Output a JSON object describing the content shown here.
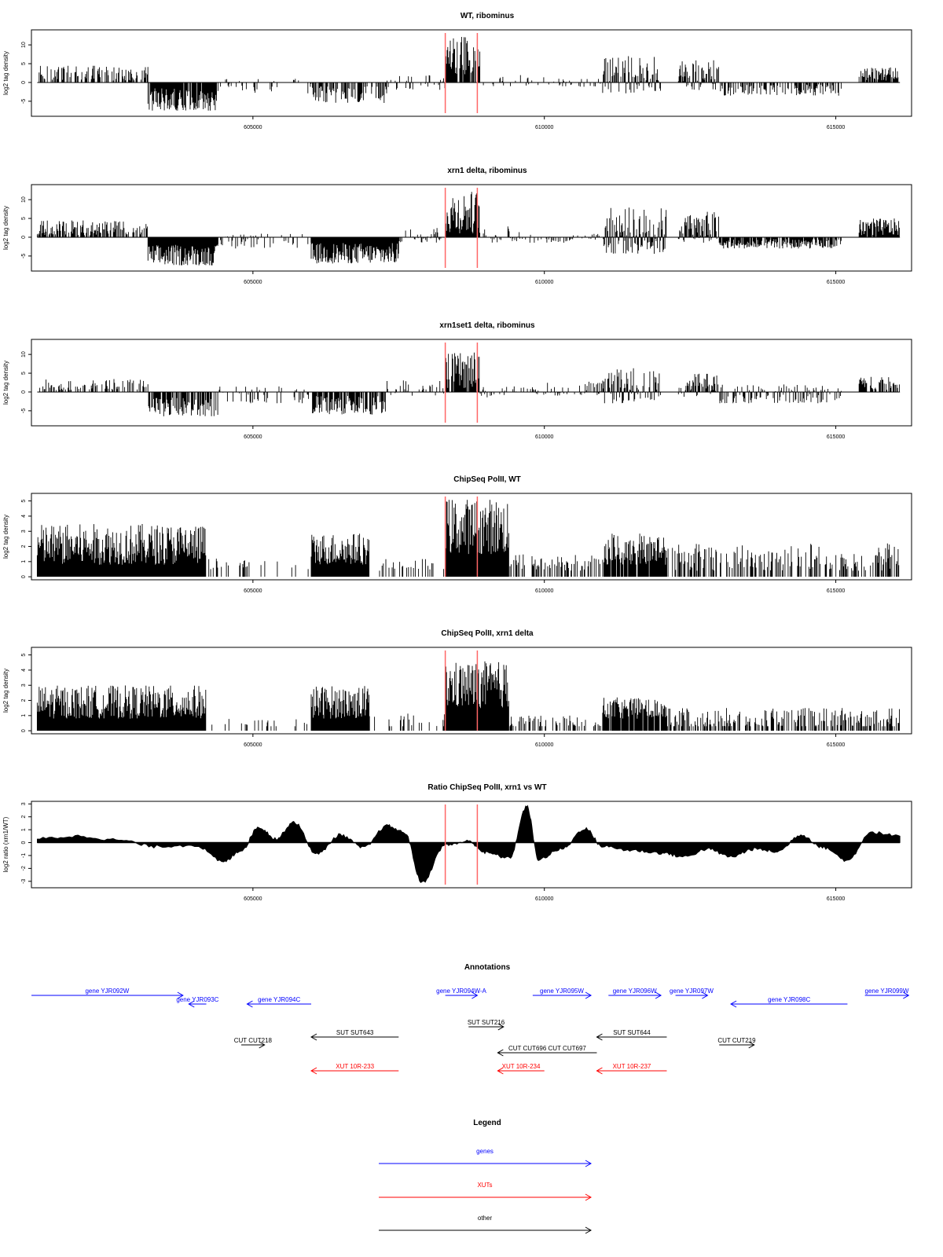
{
  "colors": {
    "gene": "#0000ff",
    "xut": "#ff0000",
    "other": "#000000",
    "marker": "#ff6666",
    "bars": "#000000",
    "frame": "#000000"
  },
  "chart_data": [
    {
      "type": "bar",
      "title": "WT, ribominus",
      "ylabel": "log2 tag density",
      "xlim": [
        601200,
        616300
      ],
      "ylim": [
        -9,
        14
      ],
      "xticks": [
        605000,
        610000,
        615000
      ],
      "xtick_labels": [
        "605000",
        "610000",
        "615000"
      ],
      "yticks": [
        -5,
        0,
        5,
        10
      ],
      "ytick_labels": [
        "-5",
        "0",
        "5",
        "10"
      ],
      "markers": [
        608300,
        608850
      ],
      "segments": [
        {
          "from": 601300,
          "to": 603200,
          "min": 0.5,
          "max": 4.5,
          "density": 0.45
        },
        {
          "from": 603200,
          "to": 604400,
          "min": -7.5,
          "max": -1.5,
          "density": 0.9
        },
        {
          "from": 604400,
          "to": 606000,
          "min": -3,
          "max": 1,
          "density": 0.25
        },
        {
          "from": 606000,
          "to": 607300,
          "min": -5.5,
          "max": -1,
          "density": 0.55
        },
        {
          "from": 607300,
          "to": 608300,
          "min": -2,
          "max": 2,
          "density": 0.2
        },
        {
          "from": 608300,
          "to": 608900,
          "min": 2,
          "max": 12.5,
          "density": 0.9
        },
        {
          "from": 608900,
          "to": 610000,
          "min": -1,
          "max": 2,
          "density": 0.2
        },
        {
          "from": 610000,
          "to": 611000,
          "min": -1.5,
          "max": 1,
          "density": 0.25
        },
        {
          "from": 611000,
          "to": 612000,
          "min": -3,
          "max": 7,
          "density": 0.8
        },
        {
          "from": 612300,
          "to": 613000,
          "min": -2,
          "max": 6,
          "density": 0.8
        },
        {
          "from": 613000,
          "to": 615100,
          "min": -3.5,
          "max": -0.5,
          "density": 0.5
        },
        {
          "from": 615400,
          "to": 616100,
          "min": 0.5,
          "max": 4,
          "density": 0.7
        }
      ]
    },
    {
      "type": "bar",
      "title": "xrn1 delta, ribominus",
      "ylabel": "log2 tag density",
      "xlim": [
        601200,
        616300
      ],
      "ylim": [
        -9,
        14
      ],
      "xticks": [
        605000,
        610000,
        615000
      ],
      "xtick_labels": [
        "605000",
        "610000",
        "615000"
      ],
      "yticks": [
        -5,
        0,
        5,
        10
      ],
      "ytick_labels": [
        "-5",
        "0",
        "5",
        "10"
      ],
      "markers": [
        608300,
        608850
      ],
      "segments": [
        {
          "from": 601300,
          "to": 603200,
          "min": 0.5,
          "max": 4.5,
          "density": 0.6
        },
        {
          "from": 603200,
          "to": 604400,
          "min": -7.5,
          "max": -2,
          "density": 1.0
        },
        {
          "from": 604400,
          "to": 606000,
          "min": -3,
          "max": 1,
          "density": 0.3
        },
        {
          "from": 606000,
          "to": 607500,
          "min": -7,
          "max": -1.5,
          "density": 1.0
        },
        {
          "from": 607500,
          "to": 608300,
          "min": -1.5,
          "max": 2.5,
          "density": 0.3
        },
        {
          "from": 608300,
          "to": 608900,
          "min": 1,
          "max": 12.5,
          "density": 1.0
        },
        {
          "from": 608900,
          "to": 610000,
          "min": -1.5,
          "max": 3,
          "density": 0.25
        },
        {
          "from": 610000,
          "to": 611000,
          "min": -1.5,
          "max": 1,
          "density": 0.35
        },
        {
          "from": 611000,
          "to": 612100,
          "min": -4.5,
          "max": 8,
          "density": 1.0
        },
        {
          "from": 612300,
          "to": 613000,
          "min": -1.5,
          "max": 7,
          "density": 0.9
        },
        {
          "from": 613000,
          "to": 615100,
          "min": -3,
          "max": -0.5,
          "density": 0.8
        },
        {
          "from": 615400,
          "to": 616100,
          "min": 0.5,
          "max": 5,
          "density": 0.9
        }
      ]
    },
    {
      "type": "bar",
      "title": "xrn1set1 delta, ribominus",
      "ylabel": "log2 tag density",
      "xlim": [
        601200,
        616300
      ],
      "ylim": [
        -9,
        14
      ],
      "xticks": [
        605000,
        610000,
        615000
      ],
      "xtick_labels": [
        "605000",
        "610000",
        "615000"
      ],
      "yticks": [
        -5,
        0,
        5,
        10
      ],
      "ytick_labels": [
        "-5",
        "0",
        "5",
        "10"
      ],
      "markers": [
        608300,
        608850
      ],
      "segments": [
        {
          "from": 601300,
          "to": 603200,
          "min": 0.5,
          "max": 3.5,
          "density": 0.45
        },
        {
          "from": 603200,
          "to": 604400,
          "min": -6.5,
          "max": -1.5,
          "density": 0.7
        },
        {
          "from": 604400,
          "to": 606000,
          "min": -3,
          "max": 1.5,
          "density": 0.3
        },
        {
          "from": 606000,
          "to": 607300,
          "min": -6,
          "max": -1,
          "density": 0.7
        },
        {
          "from": 607300,
          "to": 608300,
          "min": -1,
          "max": 3.5,
          "density": 0.3
        },
        {
          "from": 608300,
          "to": 608900,
          "min": 1,
          "max": 10.5,
          "density": 0.8
        },
        {
          "from": 608900,
          "to": 610000,
          "min": -1.5,
          "max": 2,
          "density": 0.25
        },
        {
          "from": 610000,
          "to": 611000,
          "min": -1,
          "max": 3,
          "density": 0.45
        },
        {
          "from": 611000,
          "to": 612000,
          "min": -3,
          "max": 6.5,
          "density": 0.75
        },
        {
          "from": 612300,
          "to": 613000,
          "min": -1.5,
          "max": 5.5,
          "density": 0.7
        },
        {
          "from": 613000,
          "to": 615100,
          "min": -3,
          "max": 2,
          "density": 0.55
        },
        {
          "from": 615400,
          "to": 616100,
          "min": 0.5,
          "max": 4,
          "density": 0.6
        }
      ]
    },
    {
      "type": "bar",
      "title": "ChipSeq PolII, WT",
      "ylabel": "log2 tag density",
      "xlim": [
        601200,
        616300
      ],
      "ylim": [
        -0.2,
        5.5
      ],
      "xticks": [
        605000,
        610000,
        615000
      ],
      "xtick_labels": [
        "605000",
        "610000",
        "615000"
      ],
      "yticks": [
        0,
        1,
        2,
        3,
        4,
        5
      ],
      "ytick_labels": [
        "0",
        "1",
        "2",
        "3",
        "4",
        "5"
      ],
      "markers": [
        608300,
        608850
      ],
      "segments": [
        {
          "from": 601300,
          "to": 604200,
          "min": 0.8,
          "max": 3.5,
          "density": 1.0
        },
        {
          "from": 604200,
          "to": 606000,
          "min": 0.4,
          "max": 1.2,
          "density": 0.15
        },
        {
          "from": 606000,
          "to": 607000,
          "min": 0.8,
          "max": 2.9,
          "density": 1.0
        },
        {
          "from": 607000,
          "to": 608300,
          "min": 0.4,
          "max": 1.2,
          "density": 0.2
        },
        {
          "from": 608300,
          "to": 609400,
          "min": 1.5,
          "max": 5.2,
          "density": 1.0
        },
        {
          "from": 609400,
          "to": 611000,
          "min": 0.4,
          "max": 1.5,
          "density": 0.4
        },
        {
          "from": 611000,
          "to": 612100,
          "min": 0.8,
          "max": 3,
          "density": 0.9
        },
        {
          "from": 612100,
          "to": 616100,
          "min": 0.4,
          "max": 2.2,
          "density": 0.45
        }
      ]
    },
    {
      "type": "bar",
      "title": "ChipSeq PolII, xrn1 delta",
      "ylabel": "log2 tag density",
      "xlim": [
        601200,
        616300
      ],
      "ylim": [
        -0.2,
        5.5
      ],
      "xticks": [
        605000,
        610000,
        615000
      ],
      "xtick_labels": [
        "605000",
        "610000",
        "615000"
      ],
      "yticks": [
        0,
        1,
        2,
        3,
        4,
        5
      ],
      "ytick_labels": [
        "0",
        "1",
        "2",
        "3",
        "4",
        "5"
      ],
      "markers": [
        608300,
        608850
      ],
      "segments": [
        {
          "from": 601300,
          "to": 604200,
          "min": 0.8,
          "max": 3,
          "density": 1.0
        },
        {
          "from": 604200,
          "to": 606000,
          "min": 0.2,
          "max": 0.8,
          "density": 0.1
        },
        {
          "from": 606000,
          "to": 607000,
          "min": 0.8,
          "max": 3,
          "density": 1.0
        },
        {
          "from": 607000,
          "to": 608300,
          "min": 0.2,
          "max": 1.2,
          "density": 0.15
        },
        {
          "from": 608300,
          "to": 609400,
          "min": 1.5,
          "max": 4.6,
          "density": 1.0
        },
        {
          "from": 609400,
          "to": 611000,
          "min": 0.2,
          "max": 1,
          "density": 0.35
        },
        {
          "from": 611000,
          "to": 612100,
          "min": 0.8,
          "max": 2.2,
          "density": 0.9
        },
        {
          "from": 612100,
          "to": 616100,
          "min": 0.2,
          "max": 1.5,
          "density": 0.5
        }
      ]
    },
    {
      "type": "area",
      "title": "Ratio ChipSeq PolII, xrn1 vs WT",
      "ylabel": "log2 ratio (xrn1/WT)",
      "xlim": [
        601200,
        616300
      ],
      "ylim": [
        -3.5,
        3.2
      ],
      "xticks": [
        605000,
        610000,
        615000
      ],
      "xtick_labels": [
        "605000",
        "610000",
        "615000"
      ],
      "yticks": [
        -3,
        -2,
        -1,
        0,
        1,
        2,
        3
      ],
      "ytick_labels": [
        "-3",
        "-2",
        "-1",
        "0",
        "1",
        "2",
        "3"
      ],
      "markers": [
        608300,
        608850
      ],
      "x": [
        601300,
        602000,
        602700,
        603300,
        604000,
        604500,
        604800,
        605100,
        605400,
        605700,
        606100,
        606500,
        606900,
        607300,
        607600,
        607900,
        608300,
        608700,
        609000,
        609400,
        609700,
        609900,
        610300,
        610700,
        611000,
        611500,
        612000,
        612400,
        612800,
        613200,
        613600,
        614000,
        614400,
        614800,
        615200,
        615600,
        616100
      ],
      "y": [
        0.3,
        0.5,
        0.2,
        -0.3,
        -0.2,
        -1.5,
        -0.6,
        1.2,
        0.3,
        1.6,
        -0.9,
        0.6,
        -0.4,
        1.3,
        0.8,
        -3.1,
        -0.2,
        0.1,
        -0.8,
        -1.2,
        2.8,
        -1.3,
        -0.5,
        1.1,
        -0.3,
        -0.6,
        -0.8,
        -1.1,
        -0.5,
        -1.1,
        -0.5,
        -0.7,
        0.6,
        -0.4,
        -1.4,
        0.8,
        0.5
      ]
    },
    {
      "type": "annotation",
      "title": "Annotations",
      "xlim": [
        601200,
        616300
      ],
      "features": [
        {
          "label": "gene YJR092W",
          "start": 601200,
          "end": 603800,
          "strand": "+",
          "row": 0,
          "kind": "gene"
        },
        {
          "label": "gene YJR093C",
          "start": 603900,
          "end": 604200,
          "strand": "-",
          "row": 1,
          "kind": "gene"
        },
        {
          "label": "gene YJR094C",
          "start": 604900,
          "end": 606000,
          "strand": "-",
          "row": 1,
          "kind": "gene"
        },
        {
          "label": "gene YJR094W-A",
          "start": 608300,
          "end": 608850,
          "strand": "+",
          "row": 0,
          "kind": "gene"
        },
        {
          "label": "gene YJR095W",
          "start": 609800,
          "end": 610800,
          "strand": "+",
          "row": 0,
          "kind": "gene"
        },
        {
          "label": "gene YJR096W",
          "start": 611100,
          "end": 612000,
          "strand": "+",
          "row": 0,
          "kind": "gene"
        },
        {
          "label": "gene YJR097W",
          "start": 612250,
          "end": 612800,
          "strand": "+",
          "row": 0,
          "kind": "gene"
        },
        {
          "label": "gene YJR098C",
          "start": 613200,
          "end": 615200,
          "strand": "-",
          "row": 1,
          "kind": "gene"
        },
        {
          "label": "gene YJR099W",
          "start": 615500,
          "end": 616250,
          "strand": "+",
          "row": 0,
          "kind": "gene"
        },
        {
          "label": "SUT SUT216",
          "start": 608700,
          "end": 609300,
          "strand": "+",
          "row": 2,
          "kind": "other"
        },
        {
          "label": "SUT SUT643",
          "start": 606000,
          "end": 607500,
          "strand": "-",
          "row": 3,
          "kind": "other"
        },
        {
          "label": "SUT SUT644",
          "start": 610900,
          "end": 612100,
          "strand": "-",
          "row": 3,
          "kind": "other"
        },
        {
          "label": "CUT CUT218",
          "start": 604800,
          "end": 605200,
          "strand": "+",
          "row": 4,
          "kind": "other"
        },
        {
          "label": "CUT CUT219",
          "start": 613000,
          "end": 613600,
          "strand": "+",
          "row": 4,
          "kind": "other"
        },
        {
          "label": "CUT CUT696 CUT CUT697",
          "start": 609200,
          "end": 610900,
          "strand": "-",
          "row": 5,
          "kind": "other"
        },
        {
          "label": "XUT 10R-233",
          "start": 606000,
          "end": 607500,
          "strand": "-",
          "row": 6,
          "kind": "xut"
        },
        {
          "label": "XUT 10R-234",
          "start": 609200,
          "end": 610000,
          "strand": "-",
          "row": 6,
          "kind": "xut"
        },
        {
          "label": "XUT 10R-237",
          "start": 610900,
          "end": 612100,
          "strand": "-",
          "row": 6,
          "kind": "xut"
        }
      ]
    },
    {
      "type": "legend",
      "title": "Legend",
      "entries": [
        {
          "label": "genes",
          "kind": "gene"
        },
        {
          "label": "XUTs",
          "kind": "xut"
        },
        {
          "label": "other",
          "kind": "other"
        }
      ]
    }
  ]
}
